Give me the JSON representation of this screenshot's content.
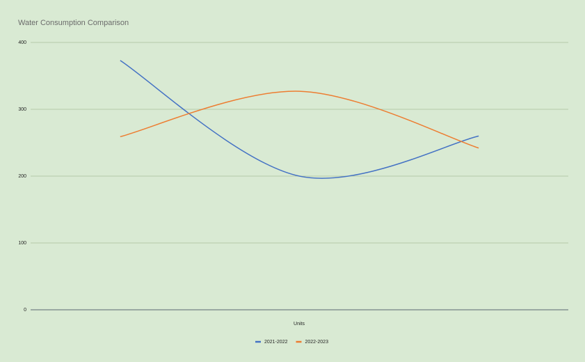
{
  "chart_data": {
    "type": "line",
    "title": "Water Consumption Comparison",
    "x_label": "Units",
    "categories": [
      null,
      null,
      null
    ],
    "series": [
      {
        "name": "2021-2022",
        "color": "#4472c4",
        "values": [
          373,
          200,
          260
        ]
      },
      {
        "name": "2022-2023",
        "color": "#ed7d31",
        "values": [
          259,
          327,
          242
        ]
      }
    ],
    "ylim": [
      0,
      400
    ],
    "yticks": [
      0,
      100,
      200,
      300,
      400
    ],
    "grid": true,
    "smooth": true,
    "legend": "bottom"
  }
}
